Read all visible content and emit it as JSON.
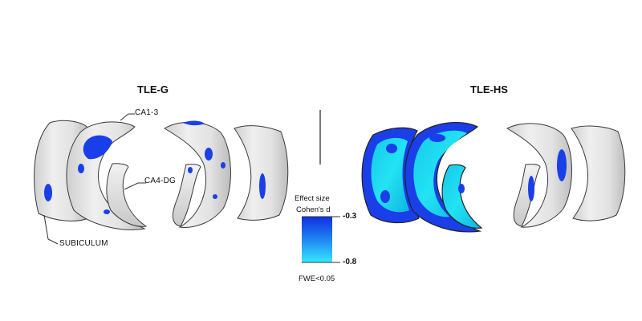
{
  "panels": [
    {
      "title": "TLE-G"
    },
    {
      "title": "TLE-HS"
    }
  ],
  "regions": {
    "ca13": "CA1-3",
    "ca4dg": "CA4-DG",
    "subiculum": "SUBICULUM"
  },
  "legend": {
    "heading": "Effect size",
    "subheading": "Cohen's d",
    "max_label": "-0.3",
    "min_label": "-0.8",
    "threshold": "FWE<0.05",
    "color_top": "#1230e0",
    "color_bottom": "#2fe6ff"
  },
  "colors": {
    "surface": "#e3e3e3",
    "surface_shade": "#c9c9c9",
    "outline": "#3a3a3a",
    "effect_strong": "#1a3fe8",
    "effect_weak": "#19d6ea"
  }
}
